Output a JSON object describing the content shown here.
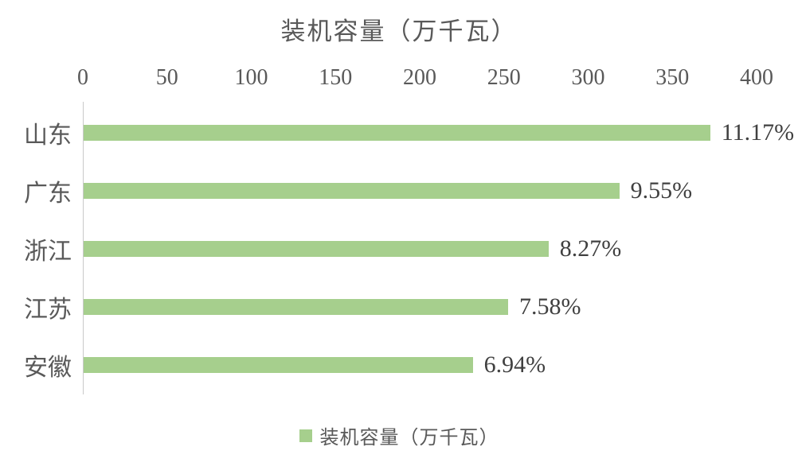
{
  "chart_data": {
    "type": "bar",
    "orientation": "horizontal",
    "title": "装机容量（万千瓦）",
    "categories": [
      "山东",
      "广东",
      "浙江",
      "江苏",
      "安徽"
    ],
    "values": [
      372,
      318,
      276,
      252,
      231
    ],
    "data_labels": [
      "11.17%",
      "9.55%",
      "8.27%",
      "7.58%",
      "6.94%"
    ],
    "series_name": "装机容量（万千瓦）",
    "xlabel": "",
    "ylabel": "",
    "xlim": [
      0,
      400
    ],
    "x_ticks": [
      0,
      50,
      100,
      150,
      200,
      250,
      300,
      350,
      400
    ],
    "grid": false,
    "legend_position": "bottom"
  },
  "legend": {
    "label": "装机容量（万千瓦）"
  },
  "colors": {
    "bar": "#a6cf8d",
    "axis_line": "#c9c9c9",
    "title_text": "#595959",
    "tick_text": "#595959",
    "category_text": "#595959",
    "value_text": "#404040",
    "background": "#ffffff"
  }
}
